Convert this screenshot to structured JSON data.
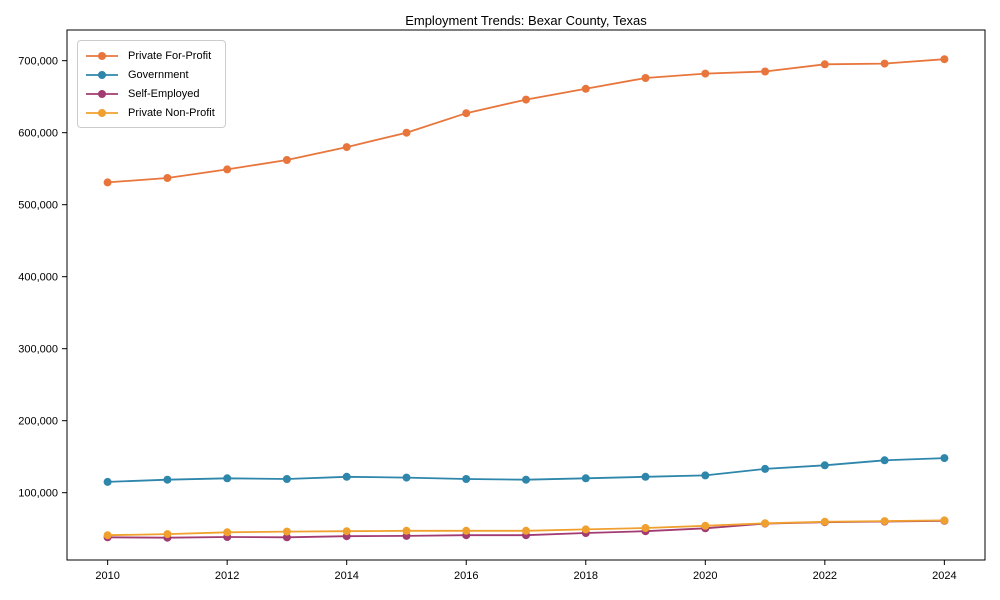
{
  "chart_data": {
    "type": "line",
    "title": "Employment Trends: Bexar County, Texas",
    "xlabel": "",
    "ylabel": "",
    "grid": false,
    "legend_position": "upper left",
    "x": [
      2010,
      2011,
      2012,
      2013,
      2014,
      2015,
      2016,
      2017,
      2018,
      2019,
      2020,
      2021,
      2022,
      2023,
      2024
    ],
    "series": [
      {
        "name": "Private For-Profit",
        "color": "#E8763C",
        "values": [
          531000,
          537000,
          549000,
          562000,
          580000,
          600000,
          627000,
          646000,
          661000,
          676000,
          682000,
          685000,
          695000,
          696000,
          702000
        ]
      },
      {
        "name": "Government",
        "color": "#2E86AB",
        "values": [
          115000,
          118000,
          120000,
          119000,
          122000,
          121000,
          119000,
          118000,
          120000,
          122000,
          124000,
          133000,
          138000,
          145000,
          148000
        ]
      },
      {
        "name": "Self-Employed",
        "color": "#A23B72",
        "values": [
          38000,
          37500,
          38500,
          38000,
          39500,
          40000,
          41000,
          41000,
          44000,
          46500,
          50500,
          57000,
          59000,
          60000,
          61000
        ]
      },
      {
        "name": "Private Non-Profit",
        "color": "#F0A02E",
        "values": [
          41000,
          42500,
          45000,
          46000,
          46500,
          47000,
          47000,
          47000,
          49000,
          51000,
          54000,
          57500,
          59500,
          60500,
          61500
        ]
      }
    ],
    "xticks": [
      2010,
      2012,
      2014,
      2016,
      2018,
      2020,
      2022,
      2024
    ],
    "yticks": [
      100000,
      200000,
      300000,
      400000,
      500000,
      600000,
      700000
    ],
    "xlim": [
      2009.32,
      2024.68
    ],
    "ylim": [
      6500,
      742600
    ]
  }
}
